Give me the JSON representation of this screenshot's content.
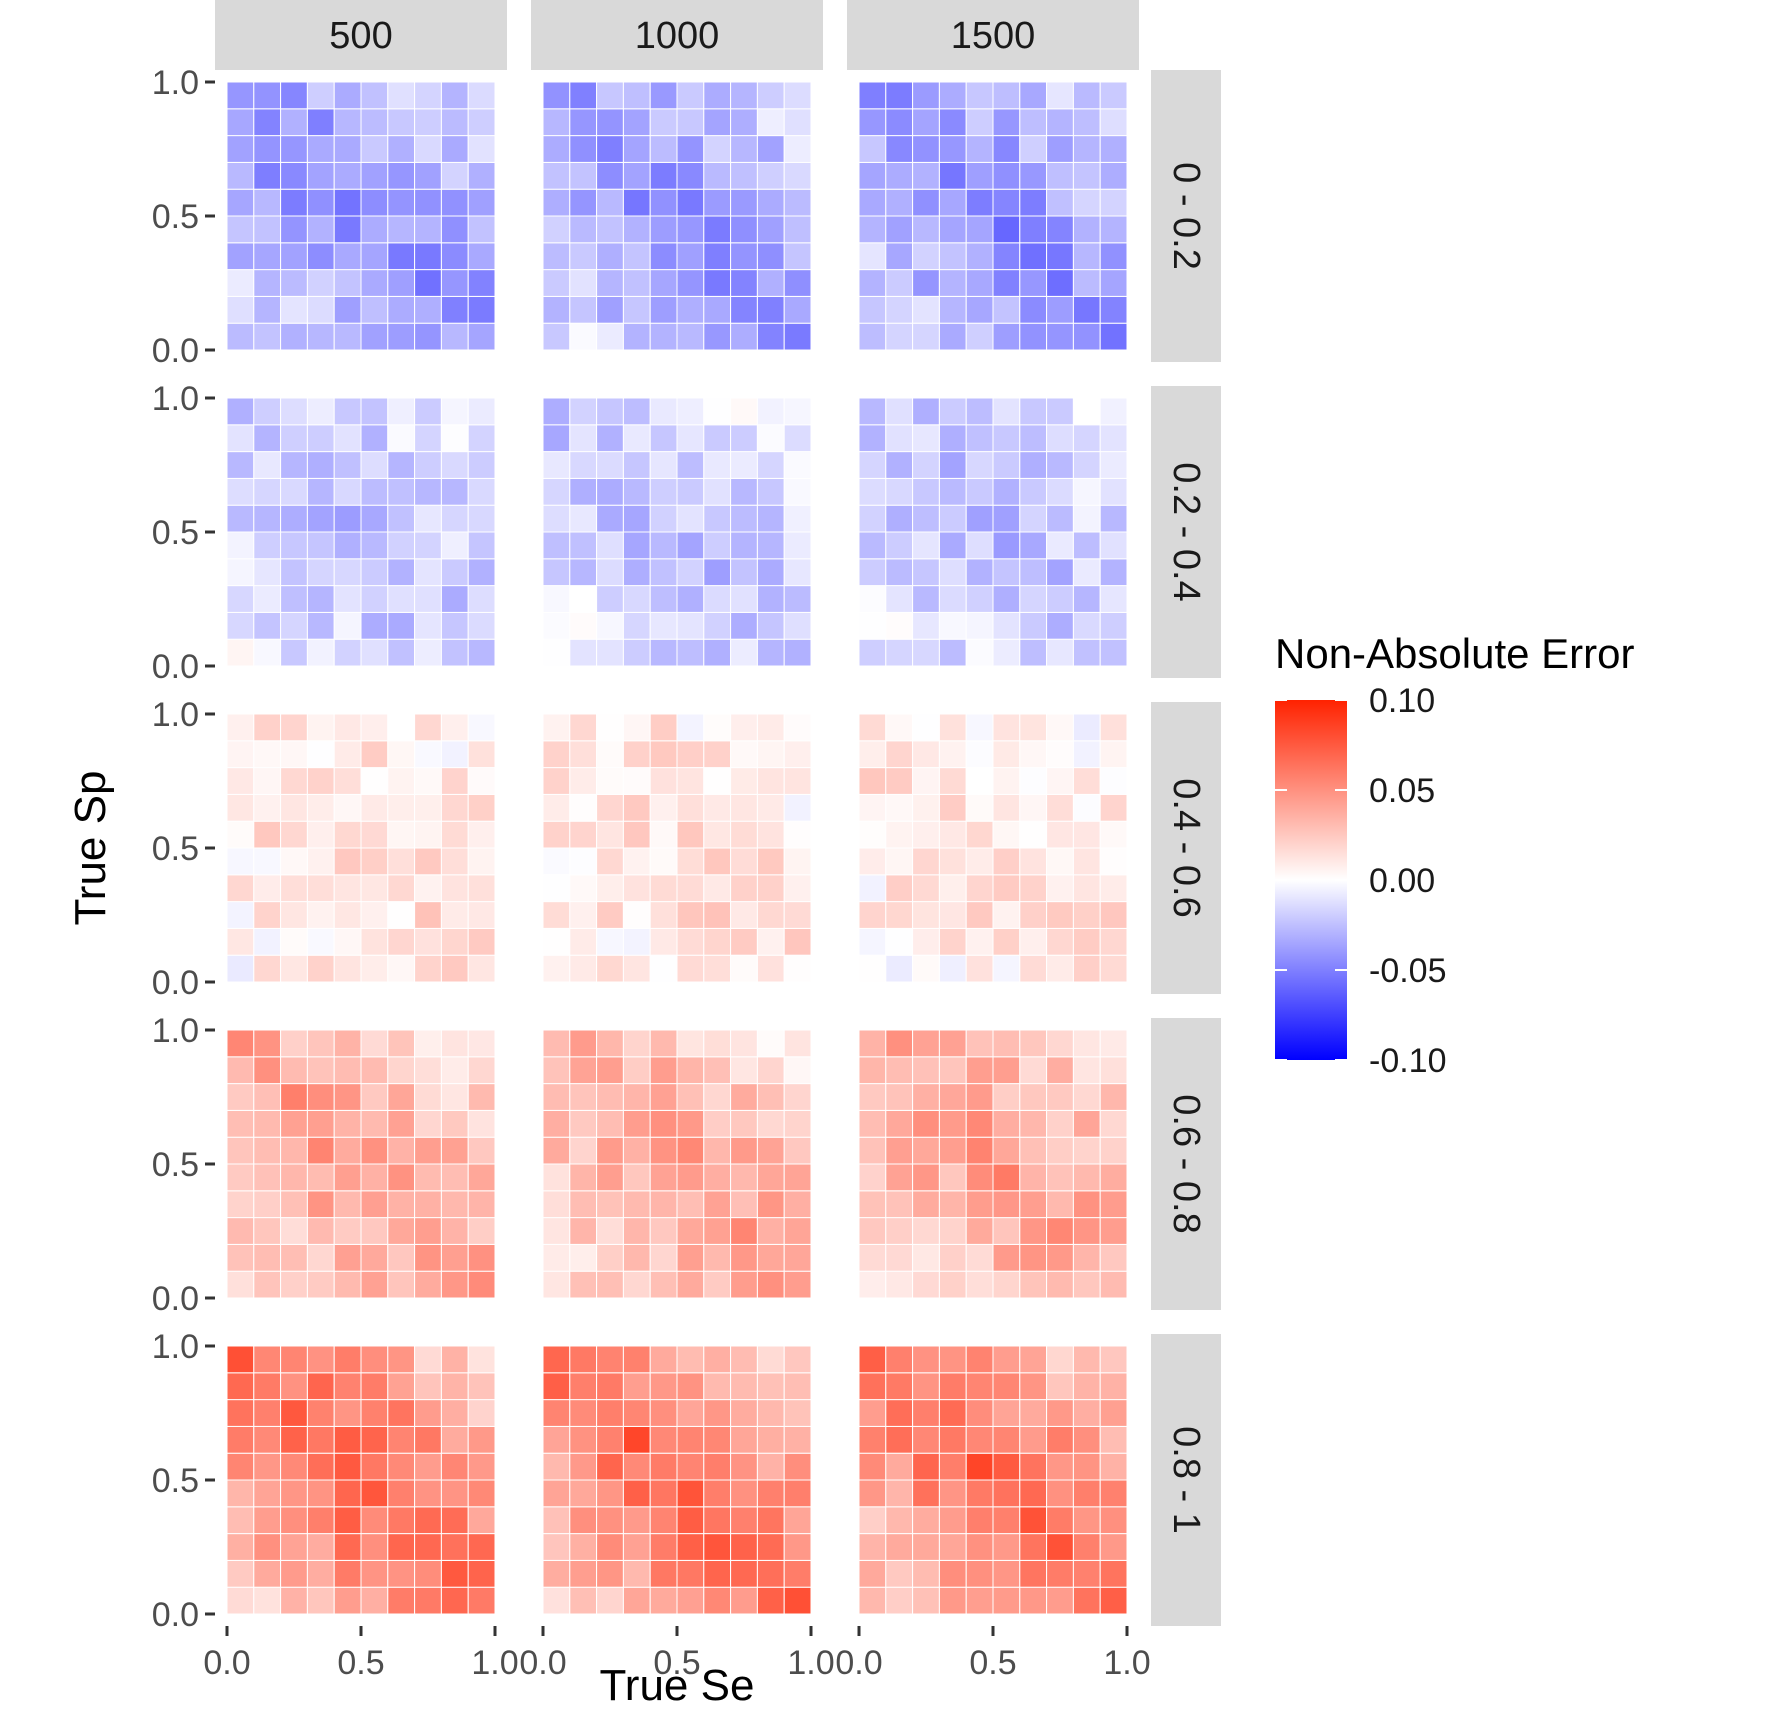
{
  "chart_data": {
    "type": "heatmap",
    "title": "",
    "xlabel": "True Se",
    "ylabel": "True Sp",
    "xlim": [
      0,
      1
    ],
    "ylim": [
      0,
      1
    ],
    "x_ticks": [
      "0.0",
      "0.5",
      "1.0"
    ],
    "y_ticks": [
      "0.0",
      "0.5",
      "1.0"
    ],
    "column_facets": [
      "500",
      "1000",
      "1500"
    ],
    "row_facets": [
      "0 - 0.2",
      "0.2 - 0.4",
      "0.4 - 0.6",
      "0.6 - 0.8",
      "0.8 - 1"
    ],
    "row_facet_base_error": [
      -0.035,
      -0.02,
      0.012,
      0.035,
      0.055
    ],
    "grid_cells": 10,
    "grid": false,
    "legend": {
      "title": "Non-Absolute Error",
      "position": "right",
      "range": [
        -0.1,
        0.1
      ],
      "ticks": [
        "0.10",
        "0.05",
        "0.00",
        "-0.05",
        "-0.10"
      ],
      "tick_values": [
        0.1,
        0.05,
        0.0,
        -0.05,
        -0.1
      ],
      "colors": {
        "low": "#0000ff",
        "mid": "#ffffff",
        "high": "#ff2200"
      }
    },
    "colors": {
      "strip_bg": "#d9d9d9",
      "panel_bg": "#ffffff"
    }
  }
}
